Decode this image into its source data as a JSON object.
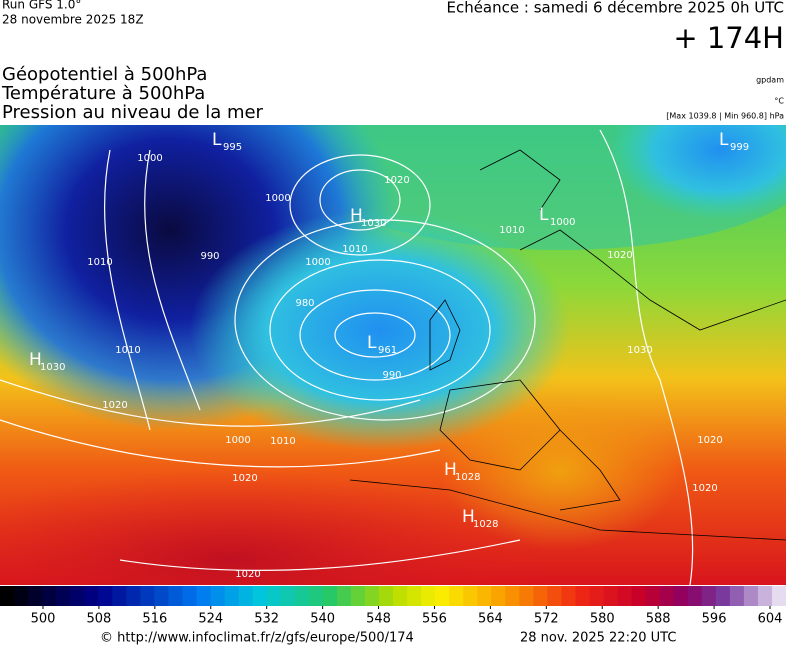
{
  "header": {
    "run": "Run GFS 1.0°",
    "run_date": "28 novembre 2025 18Z",
    "valid": "Echéance : samedi 6 décembre 2025 0h UTC",
    "lead": "+ 174H"
  },
  "titles": [
    "Géopotentiel à 500hPa",
    "Température à 500hPa",
    "Pression au niveau de la mer"
  ],
  "units": {
    "geopotential": "gpdam",
    "temperature": "°C",
    "pressure": "[Max 1039.8 | Min 960.8] hPa"
  },
  "pressure_centers": [
    {
      "letter": "L",
      "value": 995
    },
    {
      "letter": "H",
      "value": 1030
    },
    {
      "letter": "L",
      "value": 1000
    },
    {
      "letter": "L",
      "value": 999
    },
    {
      "letter": "H",
      "value": 1030
    },
    {
      "letter": "L",
      "value": 961
    },
    {
      "letter": "H",
      "value": 1028
    },
    {
      "letter": "H",
      "value": 1028
    }
  ],
  "isobar_labels": [
    1000,
    1010,
    990,
    1000,
    1010,
    1010,
    1000,
    980,
    990,
    1000,
    1010,
    1020,
    1020,
    1010,
    1020,
    1030,
    1020,
    1020,
    1020,
    1020
  ],
  "colorbar": {
    "ticks": [
      500,
      508,
      516,
      524,
      532,
      540,
      548,
      556,
      564,
      572,
      580,
      588,
      596,
      604
    ]
  },
  "footer": {
    "url": "© http://www.infoclimat.fr/z/gfs/europe/500/174",
    "timestamp": "28 nov. 2025 22:20 UTC"
  }
}
